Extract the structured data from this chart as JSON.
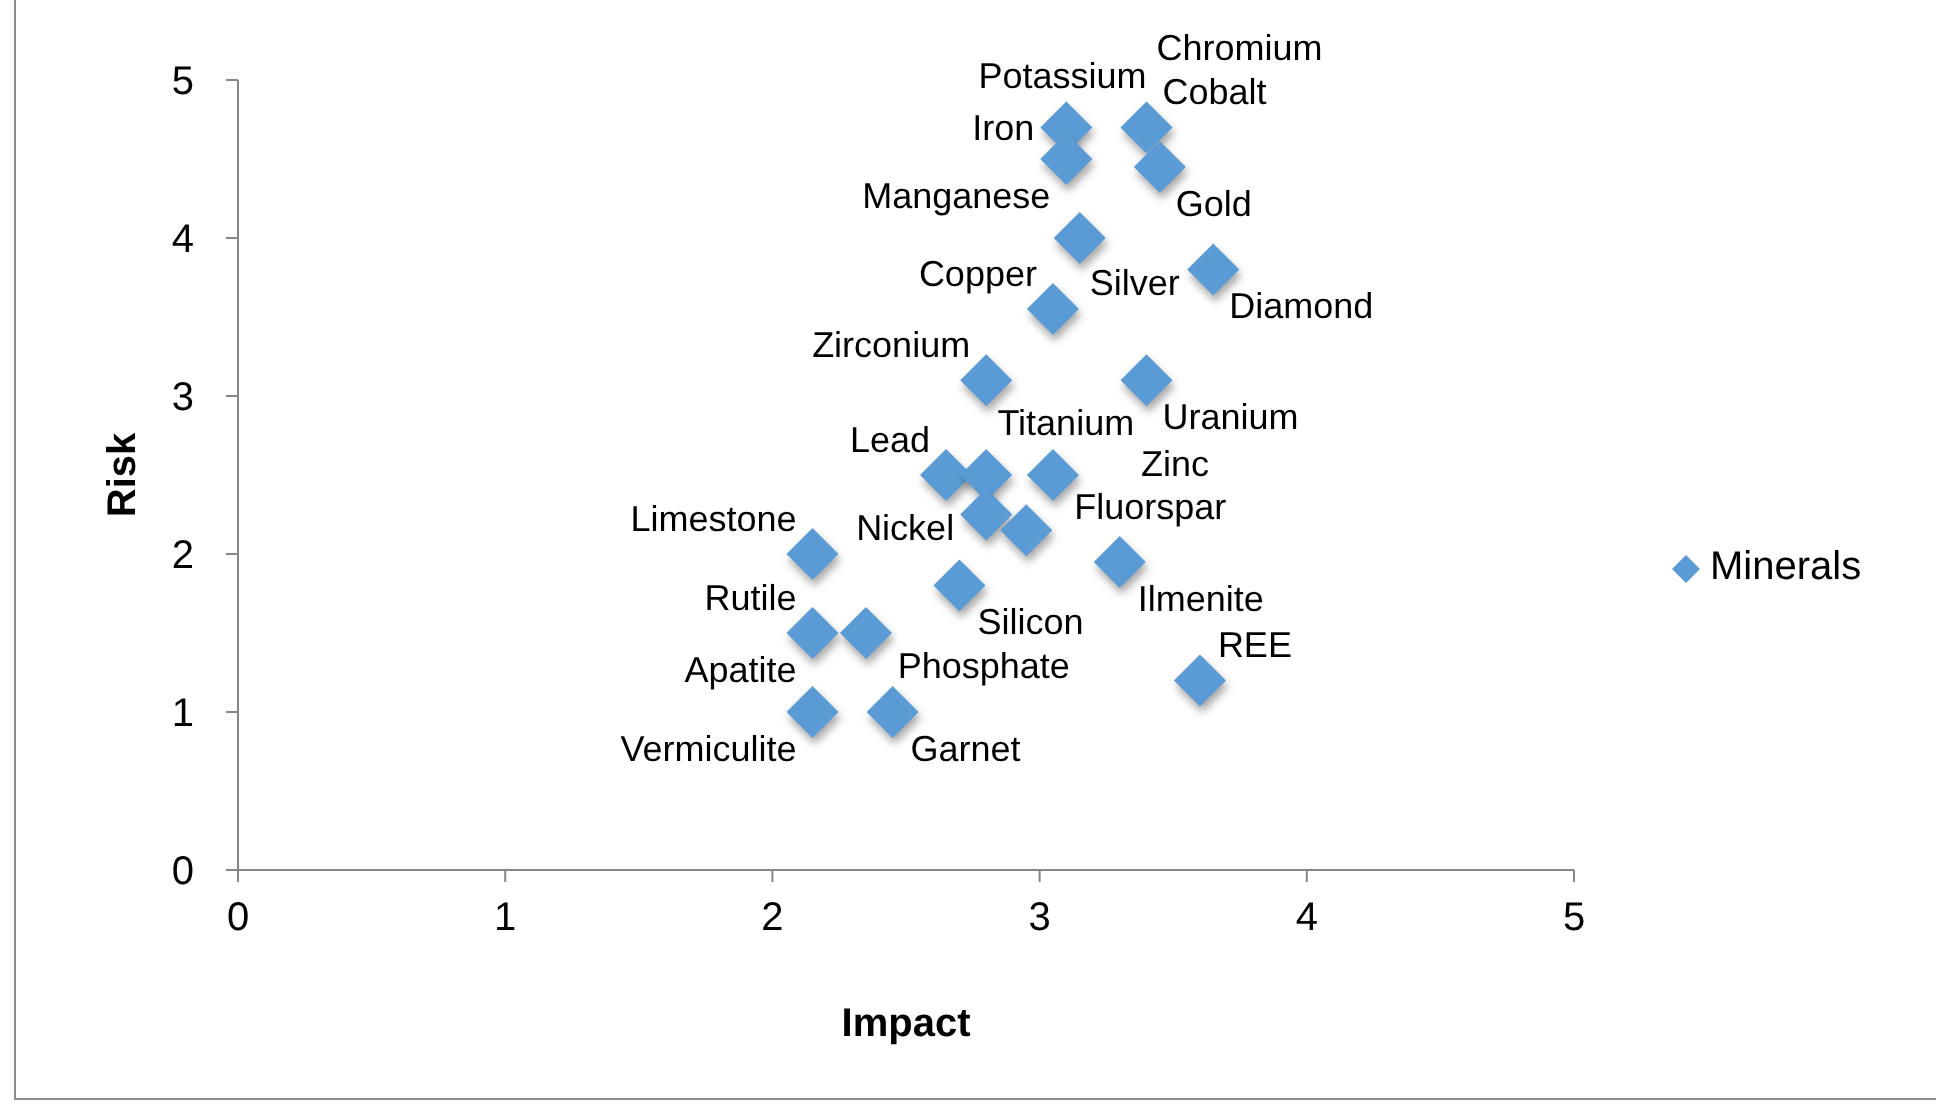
{
  "chart_data": {
    "type": "scatter",
    "xlabel": "Impact",
    "ylabel": "Risk",
    "xlim": [
      0,
      5
    ],
    "xticks": [
      0,
      1,
      2,
      3,
      4,
      5
    ],
    "ylim": [
      0,
      5
    ],
    "yticks": [
      0,
      1,
      2,
      3,
      4,
      5
    ],
    "legend": "right",
    "marker": "diamond",
    "series": [
      {
        "name": "Minerals",
        "color": "#5b9bd5",
        "x": [
          3.1,
          3.4,
          3.1,
          3.45,
          3.15,
          3.65,
          3.05,
          2.8,
          3.4,
          2.65,
          2.8,
          3.05,
          2.8,
          2.95,
          2.15,
          3.3,
          2.7,
          2.15,
          2.35,
          2.15,
          2.45,
          3.6
        ],
        "values": [
          4.7,
          4.7,
          4.5,
          4.45,
          4.0,
          3.8,
          3.55,
          3.1,
          3.1,
          2.5,
          2.5,
          2.5,
          2.25,
          2.15,
          2.0,
          1.95,
          1.8,
          1.5,
          1.5,
          1.0,
          1.0,
          1.2
        ]
      }
    ],
    "annotations": [
      {
        "text": "Iron",
        "x": 3.1,
        "y": 4.7
      },
      {
        "text": "Cobalt",
        "x": 3.4,
        "y": 4.7
      },
      {
        "text": "Potassium",
        "x": 3.4,
        "y": 4.7
      },
      {
        "text": "Chromium",
        "x": 3.4,
        "y": 4.7
      },
      {
        "text": "Manganese",
        "x": 3.1,
        "y": 4.5
      },
      {
        "text": "Gold",
        "x": 3.45,
        "y": 4.45
      },
      {
        "text": "Silver",
        "x": 3.15,
        "y": 4.0
      },
      {
        "text": "Diamond",
        "x": 3.65,
        "y": 3.8
      },
      {
        "text": "Copper",
        "x": 3.05,
        "y": 3.55
      },
      {
        "text": "Zirconium",
        "x": 2.8,
        "y": 3.1
      },
      {
        "text": "Uranium",
        "x": 3.4,
        "y": 3.1
      },
      {
        "text": "Lead",
        "x": 2.65,
        "y": 2.5
      },
      {
        "text": "Nickel",
        "x": 2.8,
        "y": 2.5
      },
      {
        "text": "Zinc",
        "x": 3.05,
        "y": 2.5
      },
      {
        "text": "Titanium",
        "x": 2.8,
        "y": 2.25
      },
      {
        "text": "Fluorspar",
        "x": 2.95,
        "y": 2.15
      },
      {
        "text": "Limestone",
        "x": 2.15,
        "y": 2.0
      },
      {
        "text": "Ilmenite",
        "x": 3.3,
        "y": 1.95
      },
      {
        "text": "Silicon",
        "x": 2.7,
        "y": 1.8
      },
      {
        "text": "Rutile",
        "x": 2.15,
        "y": 1.5
      },
      {
        "text": "Apatite",
        "x": 2.15,
        "y": 1.5
      },
      {
        "text": "Phosphate",
        "x": 2.35,
        "y": 1.5
      },
      {
        "text": "Vermiculite",
        "x": 2.15,
        "y": 1.0
      },
      {
        "text": "Garnet",
        "x": 2.45,
        "y": 1.0
      },
      {
        "text": "REE",
        "x": 3.6,
        "y": 1.2
      }
    ]
  }
}
